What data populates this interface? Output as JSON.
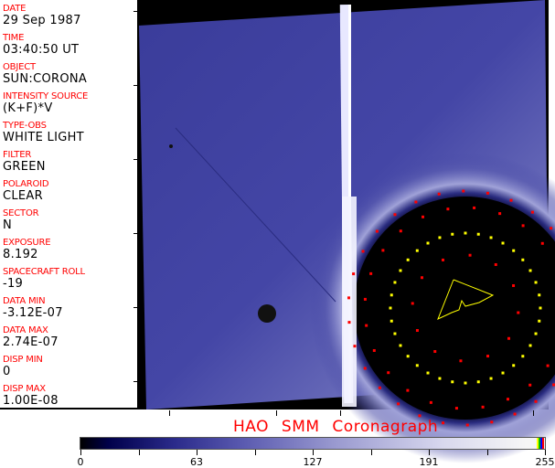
{
  "header_fields": [
    {
      "label": "DATE",
      "value": "29 Sep 1987"
    },
    {
      "label": "TIME",
      "value": "03:40:50 UT"
    },
    {
      "label": "OBJECT",
      "value": "SUN:CORONA"
    },
    {
      "label": "INTENSITY SOURCE",
      "value": "(K+F)*V"
    },
    {
      "label": "TYPE-OBS",
      "value": "WHITE LIGHT"
    },
    {
      "label": "FILTER",
      "value": "GREEN"
    },
    {
      "label": "POLAROID",
      "value": "CLEAR"
    },
    {
      "label": "SECTOR",
      "value": "N"
    },
    {
      "label": "EXPOSURE",
      "value": "8.192"
    },
    {
      "label": "SPACECRAFT ROLL",
      "value": "-19"
    },
    {
      "label": "DATA MIN",
      "value": "-3.12E-07"
    },
    {
      "label": "DATA MAX",
      "value": "2.74E-07"
    },
    {
      "label": "DISP MIN",
      "value": "0"
    },
    {
      "label": "DISP MAX",
      "value": "1.00E-08"
    }
  ],
  "title": "HAO  SMM Coronagraph",
  "colorbar": {
    "ticks": [
      "0",
      "63",
      "127",
      "191",
      "255"
    ],
    "colors": [
      "#000000",
      "#00004a",
      "#5a5ab0",
      "#d8d8ee",
      "#f6f6f6"
    ],
    "end_stripes": [
      "#ffff00",
      "#00c000",
      "#0000ff",
      "#ff0000"
    ]
  },
  "overlay_colors": {
    "occulter_marks": "#ff0000",
    "grid_marks": "#ffff00"
  }
}
